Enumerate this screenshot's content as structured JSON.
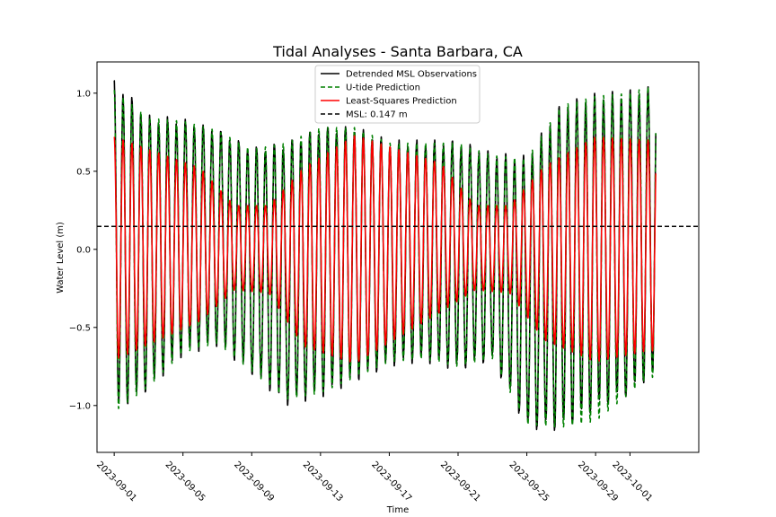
{
  "chart_data": {
    "type": "line",
    "title": "Tidal Analyses - Santa Barbara, CA",
    "xlabel": "Time",
    "ylabel": "Water Level (m)",
    "x_range": [
      "2023-08-31",
      "2023-10-05"
    ],
    "x_ticks": [
      "2023-09-01",
      "2023-09-05",
      "2023-09-09",
      "2023-09-13",
      "2023-09-17",
      "2023-09-21",
      "2023-09-25",
      "2023-09-29",
      "2023-10-01"
    ],
    "ylim": [
      -1.3,
      1.2
    ],
    "y_ticks": [
      -1.0,
      -0.5,
      0.0,
      0.5,
      1.0
    ],
    "y_tick_labels": [
      "−1.0",
      "−0.5",
      "0.0",
      "0.5",
      "1.0"
    ],
    "legend_position": "top-center",
    "grid": false,
    "series_start": "2023-09-01",
    "series_end": "2023-10-02",
    "series": [
      {
        "name": "Detrended MSL Observations",
        "color": "#000000",
        "style": "solid",
        "extremes": [
          [
            "2023-09-01",
            1.1
          ],
          [
            "2023-09-01",
            -1.06
          ],
          [
            "2023-09-03",
            0.86
          ],
          [
            "2023-09-03",
            -0.91
          ],
          [
            "2023-09-05",
            0.84
          ],
          [
            "2023-09-05",
            -0.68
          ],
          [
            "2023-09-07",
            0.78
          ],
          [
            "2023-09-07",
            -0.62
          ],
          [
            "2023-09-09",
            0.66
          ],
          [
            "2023-09-09",
            -0.8
          ],
          [
            "2023-09-11",
            0.7
          ],
          [
            "2023-09-11",
            -1.0
          ],
          [
            "2023-09-13",
            0.8
          ],
          [
            "2023-09-13",
            -0.95
          ],
          [
            "2023-09-15",
            0.8
          ],
          [
            "2023-09-15",
            -0.85
          ],
          [
            "2023-09-17",
            0.7
          ],
          [
            "2023-09-17",
            -0.75
          ],
          [
            "2023-09-19",
            0.7
          ],
          [
            "2023-09-19",
            -0.72
          ],
          [
            "2023-09-21",
            0.7
          ],
          [
            "2023-09-21",
            -0.78
          ],
          [
            "2023-09-23",
            0.62
          ],
          [
            "2023-09-23",
            -0.72
          ],
          [
            "2023-09-25",
            0.6
          ],
          [
            "2023-09-25",
            -1.16
          ],
          [
            "2023-09-27",
            0.94
          ],
          [
            "2023-09-27",
            -1.18
          ],
          [
            "2023-09-29",
            1.0
          ],
          [
            "2023-09-29",
            -1.05
          ],
          [
            "2023-10-01",
            1.02
          ],
          [
            "2023-10-01",
            -0.95
          ],
          [
            "2023-10-02",
            1.04
          ],
          [
            "2023-10-02",
            -0.85
          ]
        ]
      },
      {
        "name": "U-tide Prediction",
        "color": "#008000",
        "style": "dashed",
        "extremes": [
          [
            "2023-09-01",
            1.02
          ],
          [
            "2023-09-01",
            -1.04
          ],
          [
            "2023-09-03",
            0.84
          ],
          [
            "2023-09-03",
            -0.88
          ],
          [
            "2023-09-05",
            0.82
          ],
          [
            "2023-09-05",
            -0.66
          ],
          [
            "2023-09-07",
            0.76
          ],
          [
            "2023-09-07",
            -0.6
          ],
          [
            "2023-09-09",
            0.64
          ],
          [
            "2023-09-09",
            -0.78
          ],
          [
            "2023-09-11",
            0.68
          ],
          [
            "2023-09-11",
            -0.96
          ],
          [
            "2023-09-13",
            0.78
          ],
          [
            "2023-09-13",
            -0.92
          ],
          [
            "2023-09-15",
            0.78
          ],
          [
            "2023-09-15",
            -0.82
          ],
          [
            "2023-09-17",
            0.68
          ],
          [
            "2023-09-17",
            -0.72
          ],
          [
            "2023-09-19",
            0.68
          ],
          [
            "2023-09-19",
            -0.7
          ],
          [
            "2023-09-21",
            0.68
          ],
          [
            "2023-09-21",
            -0.75
          ],
          [
            "2023-09-23",
            0.6
          ],
          [
            "2023-09-23",
            -0.7
          ],
          [
            "2023-09-25",
            0.58
          ],
          [
            "2023-09-25",
            -1.12
          ],
          [
            "2023-09-27",
            0.92
          ],
          [
            "2023-09-27",
            -1.14
          ],
          [
            "2023-09-29",
            0.98
          ],
          [
            "2023-09-29",
            -1.1
          ],
          [
            "2023-10-01",
            1.0
          ],
          [
            "2023-10-01",
            -0.92
          ],
          [
            "2023-10-02",
            1.04
          ],
          [
            "2023-10-02",
            -0.82
          ]
        ]
      },
      {
        "name": "Least-Squares Prediction",
        "color": "#ff0000",
        "style": "solid",
        "extremes": [
          [
            "2023-09-01",
            0.72
          ],
          [
            "2023-09-01",
            -0.71
          ],
          [
            "2023-09-06",
            0.52
          ],
          [
            "2023-09-06",
            -0.46
          ],
          [
            "2023-09-08",
            0.28
          ],
          [
            "2023-09-08",
            -0.26
          ],
          [
            "2023-09-10",
            0.28
          ],
          [
            "2023-09-10",
            -0.28
          ],
          [
            "2023-09-12",
            0.52
          ],
          [
            "2023-09-12",
            -0.62
          ],
          [
            "2023-09-15",
            0.73
          ],
          [
            "2023-09-15",
            -0.73
          ],
          [
            "2023-09-20",
            0.55
          ],
          [
            "2023-09-20",
            -0.4
          ],
          [
            "2023-09-22",
            0.28
          ],
          [
            "2023-09-22",
            -0.26
          ],
          [
            "2023-09-24",
            0.28
          ],
          [
            "2023-09-24",
            -0.28
          ],
          [
            "2023-09-26",
            0.53
          ],
          [
            "2023-09-26",
            -0.58
          ],
          [
            "2023-09-29",
            0.72
          ],
          [
            "2023-09-29",
            -0.72
          ],
          [
            "2023-10-02",
            0.7
          ],
          [
            "2023-10-02",
            -0.65
          ]
        ]
      },
      {
        "name": "MSL: 0.147 m",
        "color": "#000000",
        "style": "dashed",
        "value": 0.147
      }
    ]
  }
}
